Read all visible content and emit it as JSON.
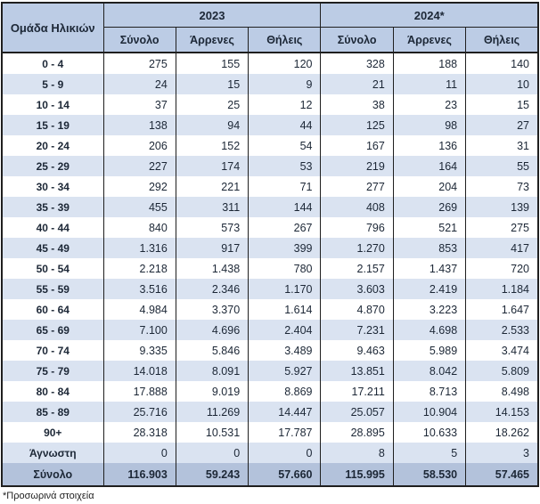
{
  "table": {
    "corner_header": "Ομάδα Ηλικιών",
    "year_groups": [
      "2023",
      "2024*"
    ],
    "sub_headers": [
      "Σύνολο",
      "Άρρενες",
      "Θήλεις"
    ],
    "rows": [
      {
        "label": "0 - 4",
        "values": [
          "275",
          "155",
          "120",
          "328",
          "188",
          "140"
        ]
      },
      {
        "label": "5 - 9",
        "values": [
          "24",
          "15",
          "9",
          "21",
          "11",
          "10"
        ]
      },
      {
        "label": "10 - 14",
        "values": [
          "37",
          "25",
          "12",
          "38",
          "23",
          "15"
        ]
      },
      {
        "label": "15 - 19",
        "values": [
          "138",
          "94",
          "44",
          "125",
          "98",
          "27"
        ]
      },
      {
        "label": "20 - 24",
        "values": [
          "206",
          "152",
          "54",
          "167",
          "136",
          "31"
        ]
      },
      {
        "label": "25 - 29",
        "values": [
          "227",
          "174",
          "53",
          "219",
          "164",
          "55"
        ]
      },
      {
        "label": "30 - 34",
        "values": [
          "292",
          "221",
          "71",
          "277",
          "204",
          "73"
        ]
      },
      {
        "label": "35 - 39",
        "values": [
          "455",
          "311",
          "144",
          "408",
          "269",
          "139"
        ]
      },
      {
        "label": "40 - 44",
        "values": [
          "840",
          "573",
          "267",
          "796",
          "521",
          "275"
        ]
      },
      {
        "label": "45 - 49",
        "values": [
          "1.316",
          "917",
          "399",
          "1.270",
          "853",
          "417"
        ]
      },
      {
        "label": "50 - 54",
        "values": [
          "2.218",
          "1.438",
          "780",
          "2.157",
          "1.437",
          "720"
        ]
      },
      {
        "label": "55 - 59",
        "values": [
          "3.516",
          "2.346",
          "1.170",
          "3.603",
          "2.419",
          "1.184"
        ]
      },
      {
        "label": "60 - 64",
        "values": [
          "4.984",
          "3.370",
          "1.614",
          "4.870",
          "3.223",
          "1.647"
        ]
      },
      {
        "label": "65 - 69",
        "values": [
          "7.100",
          "4.696",
          "2.404",
          "7.231",
          "4.698",
          "2.533"
        ]
      },
      {
        "label": "70 - 74",
        "values": [
          "9.335",
          "5.846",
          "3.489",
          "9.463",
          "5.989",
          "3.474"
        ]
      },
      {
        "label": "75 - 79",
        "values": [
          "14.018",
          "8.091",
          "5.927",
          "13.851",
          "8.042",
          "5.809"
        ]
      },
      {
        "label": "80 - 84",
        "values": [
          "17.888",
          "9.019",
          "8.869",
          "17.211",
          "8.713",
          "8.498"
        ]
      },
      {
        "label": "85 - 89",
        "values": [
          "25.716",
          "11.269",
          "14.447",
          "25.057",
          "10.904",
          "14.153"
        ]
      },
      {
        "label": "90+",
        "values": [
          "28.318",
          "10.531",
          "17.787",
          "28.895",
          "10.633",
          "18.262"
        ]
      },
      {
        "label": "Άγνωστη",
        "values": [
          "0",
          "0",
          "0",
          "8",
          "5",
          "3"
        ]
      }
    ],
    "total_row": {
      "label": "Σύνολο",
      "values": [
        "116.903",
        "59.243",
        "57.660",
        "115.995",
        "58.530",
        "57.465"
      ]
    },
    "footnote": "*Προσωρινά στοιχεία"
  },
  "colors": {
    "header_bg": "#bccce5",
    "stripe_bg": "#dae3f1",
    "total_bg": "#b3c2db",
    "border": "#1f1f1f",
    "text": "#1c2736"
  }
}
